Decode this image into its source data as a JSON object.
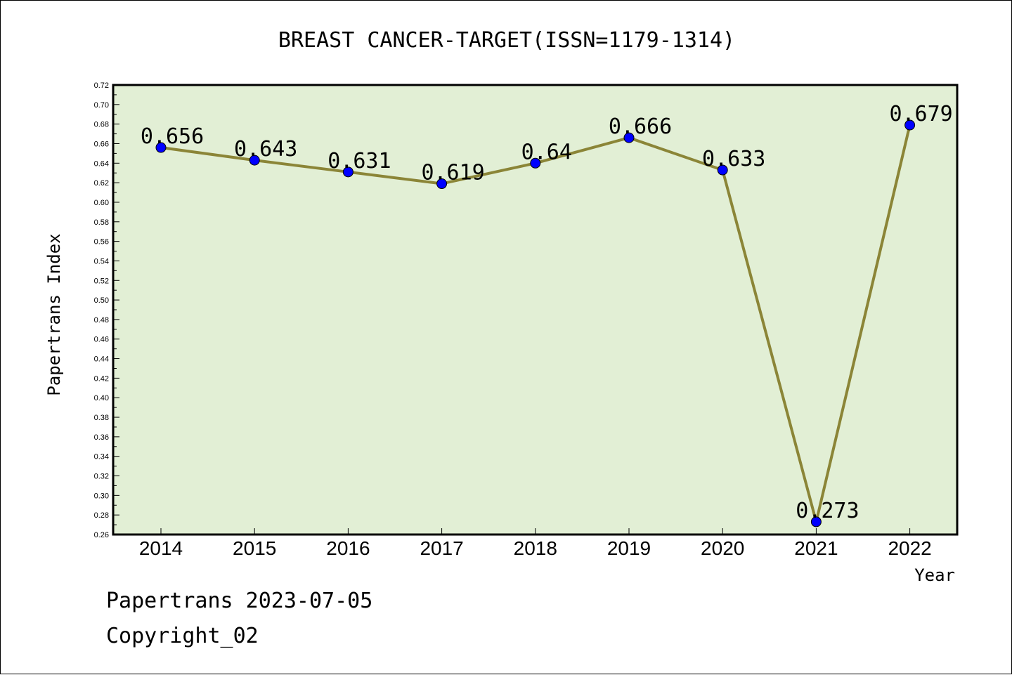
{
  "chart_data": {
    "type": "line",
    "title": "BREAST CANCER-TARGET(ISSN=1179-1314)",
    "xlabel": "Year",
    "ylabel": "Papertrans Index",
    "categories": [
      "2014",
      "2015",
      "2016",
      "2017",
      "2018",
      "2019",
      "2020",
      "2021",
      "2022"
    ],
    "series": [
      {
        "values": [
          0.656,
          0.643,
          0.631,
          0.619,
          0.64,
          0.666,
          0.633,
          0.273,
          0.679
        ],
        "labels": [
          "0.656",
          "0.643",
          "0.631",
          "0.619",
          "0.64",
          "0.666",
          "0.633",
          "0.273",
          "0.679"
        ]
      }
    ],
    "ylim": [
      0.26,
      0.72
    ],
    "yticks": [
      "0.26",
      "0.28",
      "0.30",
      "0.32",
      "0.34",
      "0.36",
      "0.38",
      "0.40",
      "0.42",
      "0.44",
      "0.46",
      "0.48",
      "0.50",
      "0.52",
      "0.54",
      "0.56",
      "0.58",
      "0.60",
      "0.62",
      "0.64",
      "0.66",
      "0.68",
      "0.70",
      "0.72"
    ],
    "grid": false,
    "colors": {
      "plot_bg": "#e2efd5",
      "line": "#8b8537",
      "marker": "#0000ff"
    }
  },
  "footer": {
    "line1": "Papertrans 2023-07-05",
    "line2": "Copyright_02"
  }
}
